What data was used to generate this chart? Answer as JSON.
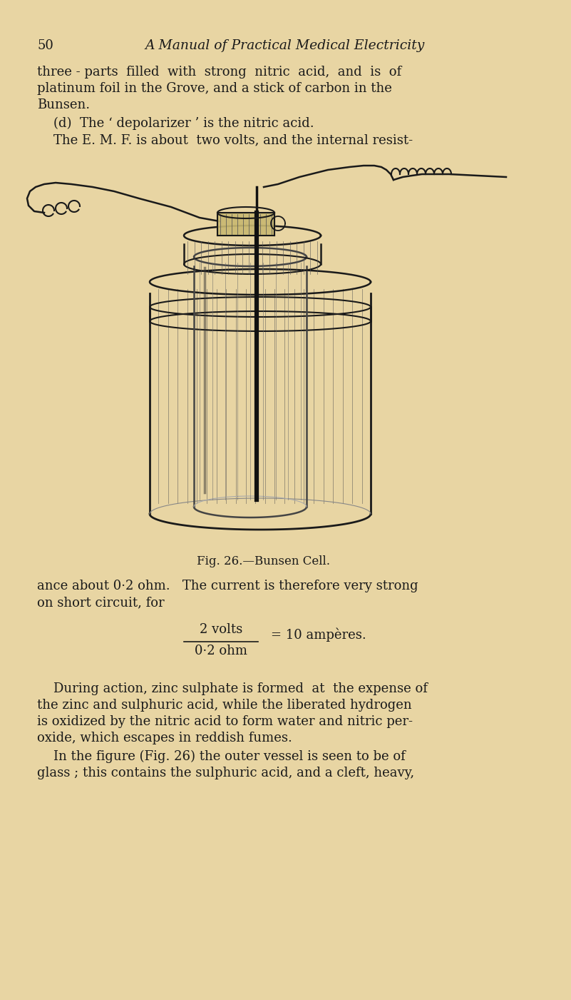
{
  "bg_color": "#e8d5a3",
  "text_color": "#1a1a1a",
  "page_number": "50",
  "header_title": "A Manual of Practical Medical Electricity",
  "line1": "three - parts  filled  with  strong  nitric  acid,  and  is  of",
  "line2": "platinum foil in the Grove, and a stick of carbon in the",
  "line3": "Bunsen.",
  "line4a": "    (d)  The ‘ depolarizer ’ is the nitric acid.",
  "line5": "    The E. M. F. is about  two volts, and the internal resist-",
  "fig_caption": "Fig. 26.—Bunsen Cell.",
  "line6": "ance about 0·2 ohm.   The current is therefore very strong",
  "line7": "on short circuit, for",
  "fraction_num": "2 volts",
  "fraction_den": "0·2 ohm",
  "fraction_eq": "= 10 ampères.",
  "para2_line1": "    During action, zinc sulphate is formed  at  the expense of",
  "para2_line2": "the zinc and sulphuric acid, while the liberated hydrogen",
  "para2_line3": "is oxidized by the nitric acid to form water and nitric per-",
  "para2_line4": "oxide, which escapes in reddish fumes.",
  "para2_line5": "    In the figure (Fig. 26) the outer vessel is seen to be of",
  "para2_line6": "glass ; this contains the sulphuric acid, and a cleft, heavy,"
}
